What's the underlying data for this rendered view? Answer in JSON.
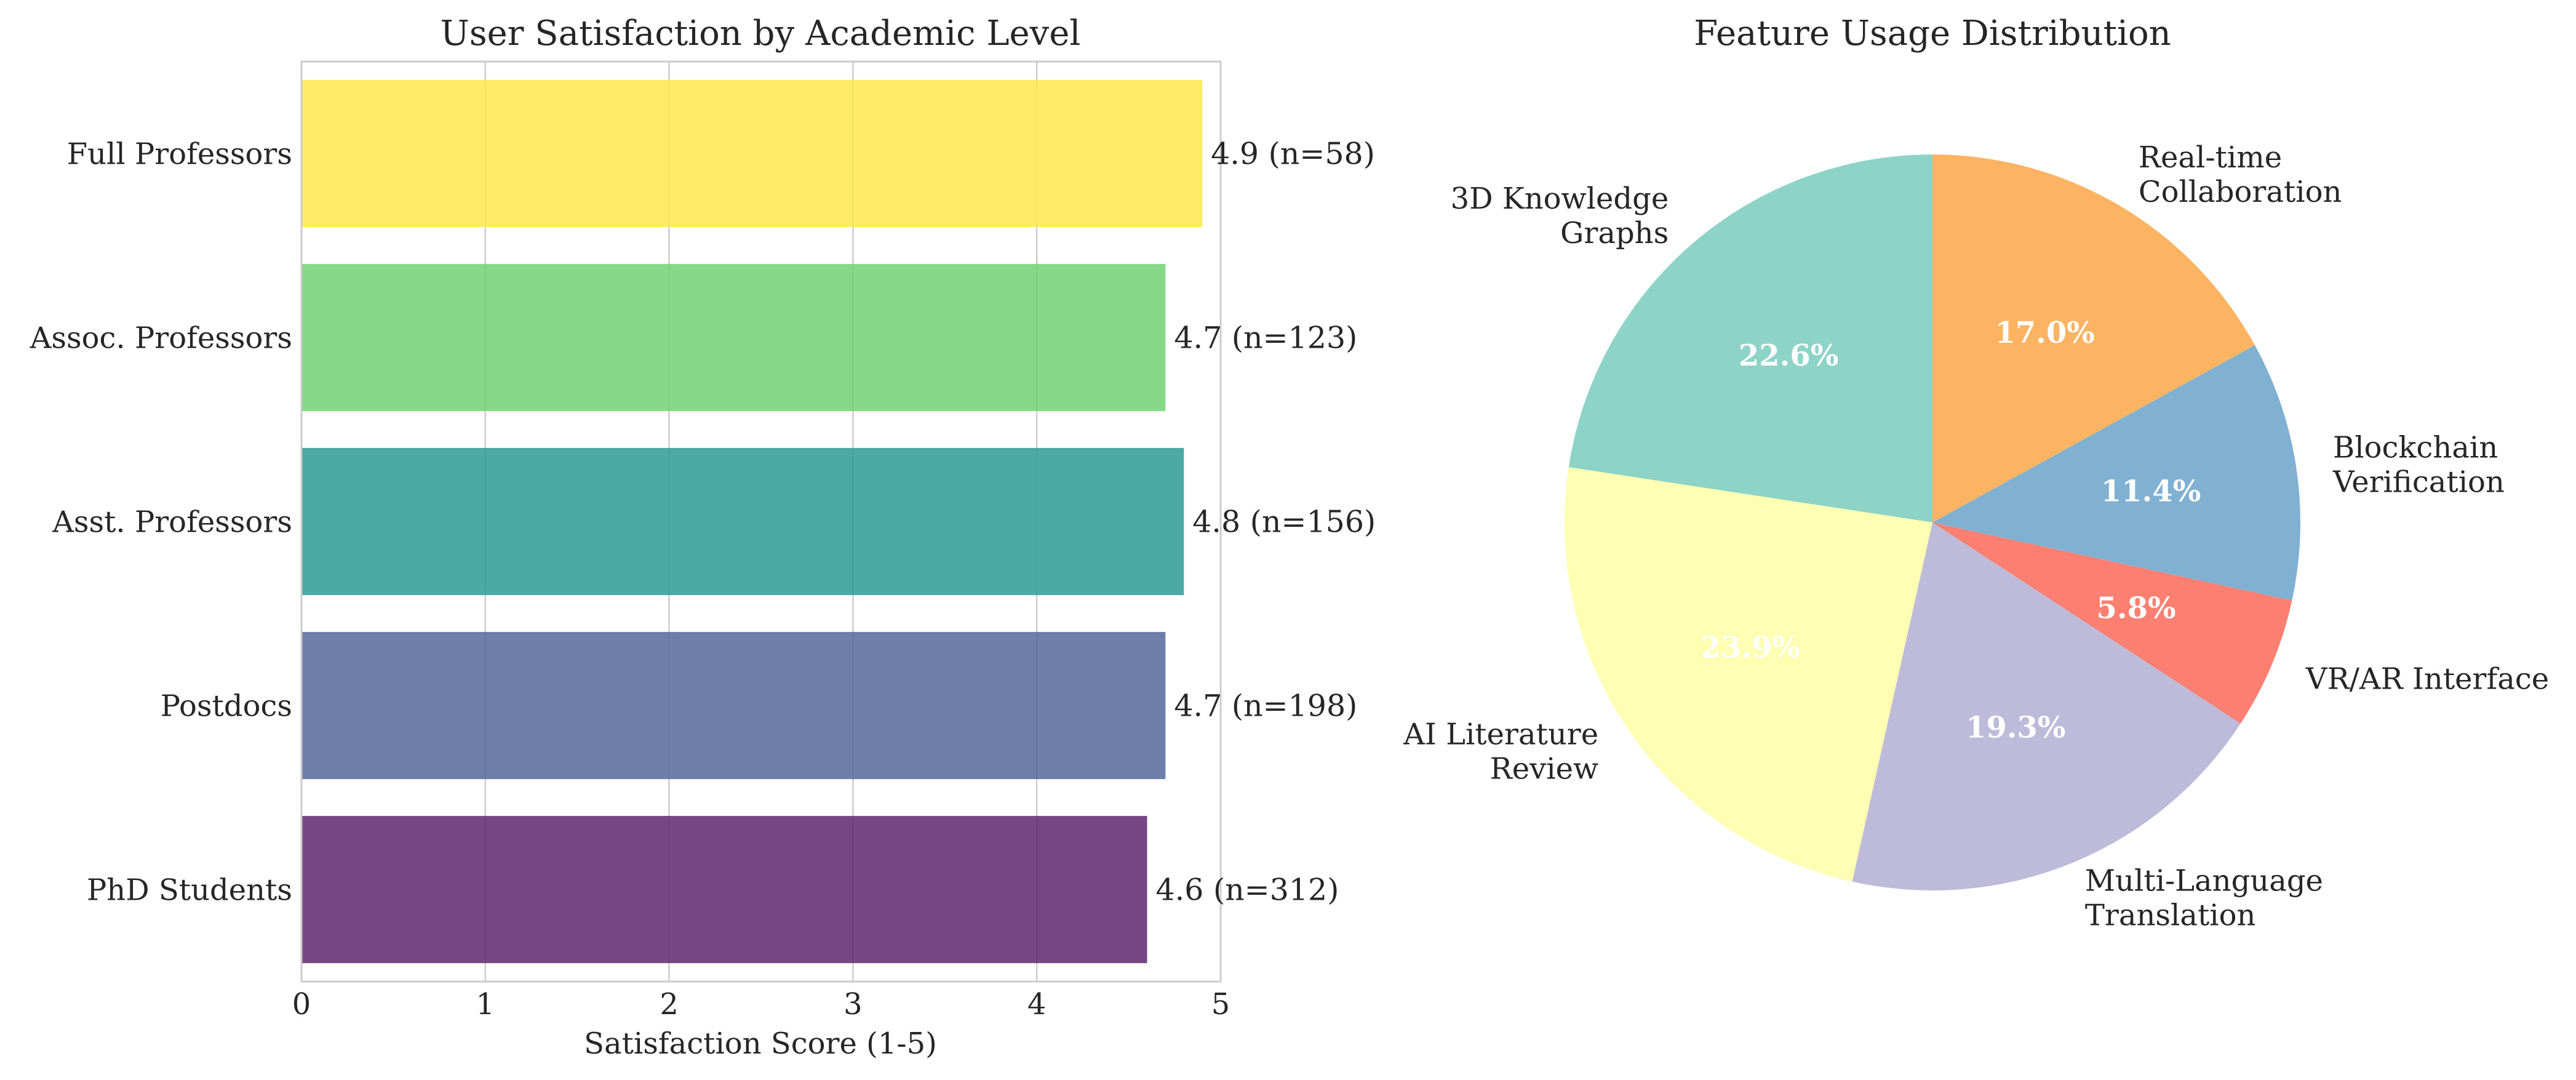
{
  "chart_data": [
    {
      "type": "bar",
      "orientation": "horizontal",
      "title": "User Satisfaction by Academic Level",
      "xlabel": "Satisfaction Score (1-5)",
      "ylabel": "",
      "xlim": [
        0,
        5
      ],
      "xticks": [
        0,
        1,
        2,
        3,
        4,
        5
      ],
      "grid": true,
      "categories": [
        "PhD Students",
        "Postdocs",
        "Asst. Professors",
        "Assoc. Professors",
        "Full Professors"
      ],
      "values": [
        4.6,
        4.7,
        4.8,
        4.7,
        4.9
      ],
      "n": [
        312,
        198,
        156,
        123,
        58
      ],
      "data_labels": [
        "4.6 (n=312)",
        "4.7 (n=198)",
        "4.8 (n=156)",
        "4.7 (n=123)",
        "4.9 (n=58)"
      ],
      "colors": [
        "#5e2770",
        "#556a9b",
        "#2e9a95",
        "#72d172",
        "#fde74b"
      ]
    },
    {
      "type": "pie",
      "title": "Feature Usage Distribution",
      "start_angle_deg": 90,
      "direction": "counterclockwise",
      "slices": [
        {
          "label": "3D Knowledge\nGraphs",
          "value": 22.6,
          "pct_label": "22.6%",
          "color": "#8dd3c7"
        },
        {
          "label": "AI Literature\nReview",
          "value": 23.9,
          "pct_label": "23.9%",
          "color": "#ffffb3"
        },
        {
          "label": "Multi-Language\nTranslation",
          "value": 19.3,
          "pct_label": "19.3%",
          "color": "#bebada"
        },
        {
          "label": "VR/AR Interface",
          "value": 5.8,
          "pct_label": "5.8%",
          "color": "#fb8072"
        },
        {
          "label": "Blockchain\nVerification",
          "value": 11.4,
          "pct_label": "11.4%",
          "color": "#80b1d3"
        },
        {
          "label": "Real-time\nCollaboration",
          "value": 17.0,
          "pct_label": "17.0%",
          "color": "#fdb462"
        }
      ]
    }
  ]
}
